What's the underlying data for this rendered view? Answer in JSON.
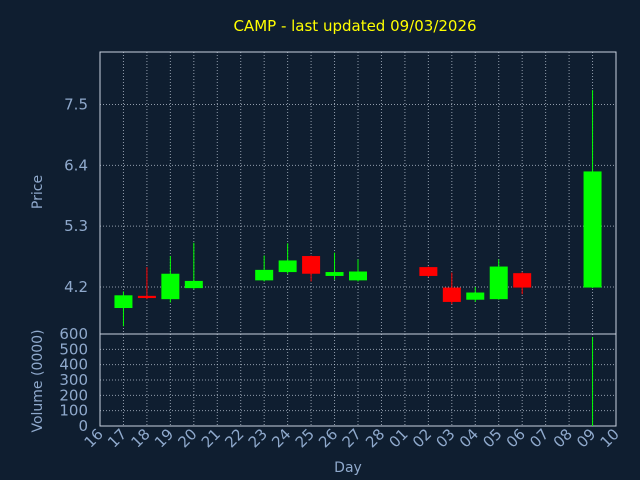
{
  "chart_data": {
    "type": "candlestick",
    "title": "CAMP - last updated 09/03/2026",
    "xlabel": "Day",
    "ylabel_price": "Price",
    "ylabel_volume": "Volume (0000)",
    "x_ticks": [
      "16",
      "17",
      "18",
      "19",
      "20",
      "21",
      "22",
      "23",
      "24",
      "25",
      "26",
      "27",
      "28",
      "01",
      "02",
      "03",
      "04",
      "05",
      "06",
      "07",
      "08",
      "09",
      "10"
    ],
    "price_ticks": [
      4.2,
      5.3,
      6.4,
      7.5
    ],
    "price_tick_labels": [
      "4.2",
      "5.3",
      "6.4",
      "7.5"
    ],
    "price_range": [
      3.35,
      8.45
    ],
    "volume_ticks": [
      0,
      100,
      200,
      300,
      400,
      500,
      600
    ],
    "volume_range": [
      0,
      600
    ],
    "colors": {
      "up": "#00ff00",
      "down": "#ff0000",
      "title": "#ffff00",
      "axis_text": "#8fa9cc",
      "background": "#0f1e30"
    },
    "candles": [
      {
        "day": "17",
        "open": 3.82,
        "close": 4.05,
        "high": 4.12,
        "low": 3.49,
        "up": true
      },
      {
        "day": "18",
        "open": 4.04,
        "close": 4.0,
        "high": 4.56,
        "low": 3.98,
        "up": false
      },
      {
        "day": "19",
        "open": 3.98,
        "close": 4.44,
        "high": 4.76,
        "low": 3.92,
        "up": true
      },
      {
        "day": "20",
        "open": 4.18,
        "close": 4.31,
        "high": 5.0,
        "low": 4.16,
        "up": true
      },
      {
        "day": "23",
        "open": 4.32,
        "close": 4.51,
        "high": 4.77,
        "low": 4.3,
        "up": true
      },
      {
        "day": "24",
        "open": 4.47,
        "close": 4.68,
        "high": 4.99,
        "low": 4.44,
        "up": true
      },
      {
        "day": "25",
        "open": 4.76,
        "close": 4.44,
        "high": 4.77,
        "low": 4.3,
        "up": false
      },
      {
        "day": "26",
        "open": 4.4,
        "close": 4.47,
        "high": 4.82,
        "low": 4.33,
        "up": true
      },
      {
        "day": "27",
        "open": 4.32,
        "close": 4.48,
        "high": 4.7,
        "low": 4.3,
        "up": true
      },
      {
        "day": "02",
        "open": 4.56,
        "close": 4.4,
        "high": 4.57,
        "low": 4.38,
        "up": false
      },
      {
        "day": "03",
        "open": 4.19,
        "close": 3.93,
        "high": 4.46,
        "low": 3.89,
        "up": false
      },
      {
        "day": "04",
        "open": 3.97,
        "close": 4.1,
        "high": 4.2,
        "low": 3.93,
        "up": true
      },
      {
        "day": "05",
        "open": 3.98,
        "close": 4.57,
        "high": 4.7,
        "low": 3.97,
        "up": true
      },
      {
        "day": "06",
        "open": 4.45,
        "close": 4.19,
        "high": 4.47,
        "low": 4.07,
        "up": false
      },
      {
        "day": "09",
        "open": 4.19,
        "close": 6.29,
        "high": 7.76,
        "low": 4.18,
        "up": true
      }
    ],
    "volumes": [
      {
        "day": "09",
        "value": 580
      }
    ],
    "grid": true
  }
}
